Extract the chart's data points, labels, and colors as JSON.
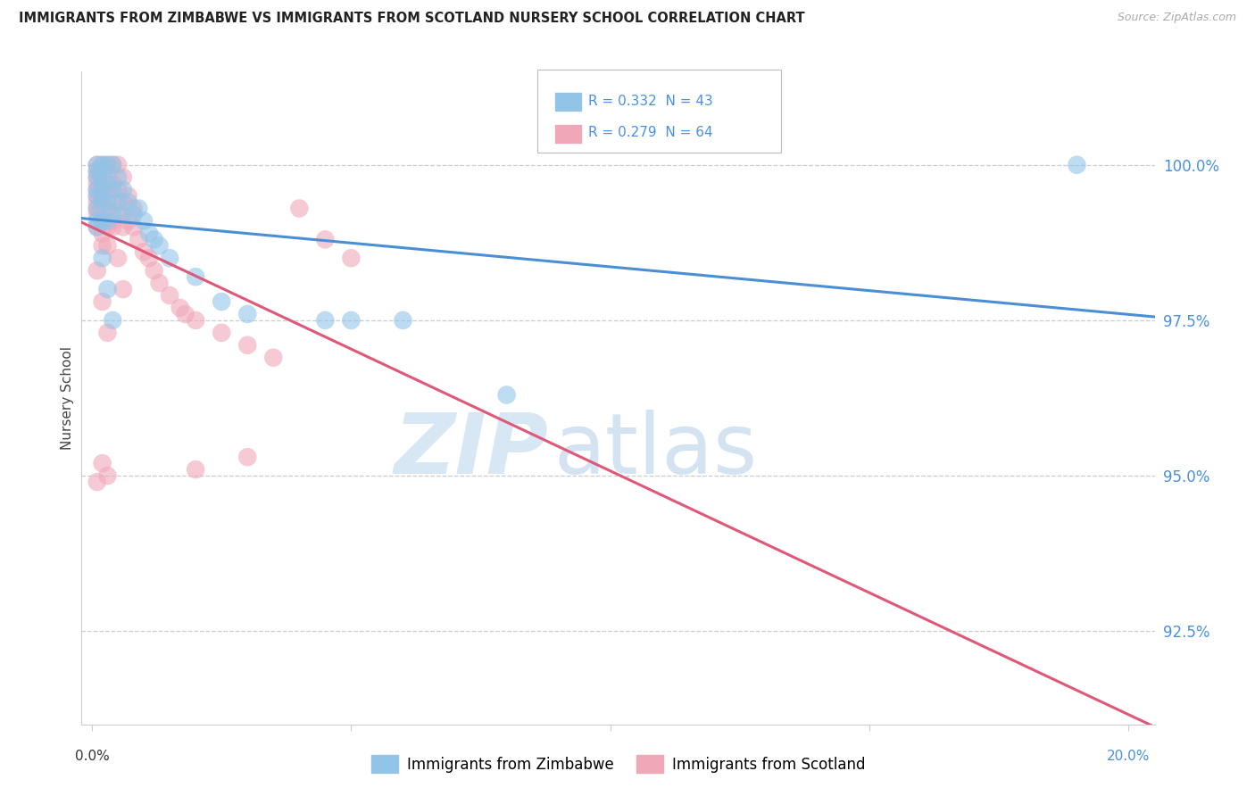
{
  "title": "IMMIGRANTS FROM ZIMBABWE VS IMMIGRANTS FROM SCOTLAND NURSERY SCHOOL CORRELATION CHART",
  "source": "Source: ZipAtlas.com",
  "ylabel": "Nursery School",
  "y_ticks": [
    92.5,
    95.0,
    97.5,
    100.0
  ],
  "y_tick_labels": [
    "92.5%",
    "95.0%",
    "97.5%",
    "100.0%"
  ],
  "ylim": [
    91.0,
    101.5
  ],
  "xlim": [
    -0.002,
    0.205
  ],
  "x_tick_positions": [
    0.0,
    0.05,
    0.1,
    0.15,
    0.2
  ],
  "zimbabwe_color": "#92c4e8",
  "scotland_color": "#f0a8b8",
  "zimbabwe_line_color": "#4a8fd4",
  "scotland_line_color": "#e05878",
  "legend1_label": "R = 0.332  N = 43",
  "legend2_label": "R = 0.279  N = 64",
  "bottom_legend1": "Immigrants from Zimbabwe",
  "bottom_legend2": "Immigrants from Scotland",
  "grid_color": "#cccccc",
  "bg_color": "#ffffff",
  "title_color": "#222222",
  "source_color": "#aaaaaa",
  "y_tick_color": "#4a90e2",
  "zimbabwe_x": [
    0.001,
    0.001,
    0.001,
    0.001,
    0.001,
    0.001,
    0.001,
    0.002,
    0.002,
    0.002,
    0.002,
    0.002,
    0.003,
    0.003,
    0.003,
    0.003,
    0.004,
    0.004,
    0.004,
    0.005,
    0.005,
    0.006,
    0.006,
    0.007,
    0.008,
    0.009,
    0.01,
    0.011,
    0.012,
    0.013,
    0.015,
    0.02,
    0.025,
    0.03,
    0.045,
    0.05,
    0.06,
    0.08,
    0.19,
    0.001,
    0.002,
    0.003,
    0.004
  ],
  "zimbabwe_y": [
    100.0,
    99.9,
    99.8,
    99.6,
    99.5,
    99.3,
    99.1,
    100.0,
    99.8,
    99.6,
    99.4,
    99.1,
    100.0,
    99.7,
    99.4,
    99.1,
    100.0,
    99.6,
    99.2,
    99.8,
    99.4,
    99.6,
    99.2,
    99.4,
    99.2,
    99.3,
    99.1,
    98.9,
    98.8,
    98.7,
    98.5,
    98.2,
    97.8,
    97.6,
    97.5,
    97.5,
    97.5,
    96.3,
    100.0,
    99.0,
    98.5,
    98.0,
    97.5
  ],
  "scotland_x": [
    0.001,
    0.001,
    0.001,
    0.001,
    0.001,
    0.001,
    0.001,
    0.001,
    0.001,
    0.001,
    0.002,
    0.002,
    0.002,
    0.002,
    0.002,
    0.002,
    0.002,
    0.002,
    0.003,
    0.003,
    0.003,
    0.003,
    0.003,
    0.003,
    0.004,
    0.004,
    0.004,
    0.004,
    0.005,
    0.005,
    0.005,
    0.006,
    0.006,
    0.006,
    0.007,
    0.007,
    0.008,
    0.008,
    0.009,
    0.01,
    0.011,
    0.012,
    0.013,
    0.015,
    0.017,
    0.018,
    0.02,
    0.025,
    0.03,
    0.035,
    0.04,
    0.045,
    0.05,
    0.001,
    0.002,
    0.003,
    0.004,
    0.005,
    0.006,
    0.02,
    0.03,
    0.001,
    0.002,
    0.003
  ],
  "scotland_y": [
    100.0,
    99.9,
    99.8,
    99.7,
    99.6,
    99.5,
    99.4,
    99.3,
    99.2,
    99.0,
    100.0,
    99.9,
    99.7,
    99.5,
    99.3,
    99.1,
    98.9,
    98.7,
    100.0,
    99.8,
    99.6,
    99.3,
    99.0,
    98.7,
    100.0,
    99.7,
    99.4,
    99.1,
    100.0,
    99.6,
    99.2,
    99.8,
    99.4,
    99.0,
    99.5,
    99.1,
    99.3,
    99.0,
    98.8,
    98.6,
    98.5,
    98.3,
    98.1,
    97.9,
    97.7,
    97.6,
    97.5,
    97.3,
    97.1,
    96.9,
    99.3,
    98.8,
    98.5,
    98.3,
    97.8,
    97.3,
    99.0,
    98.5,
    98.0,
    95.1,
    95.3,
    94.9,
    95.2,
    95.0
  ]
}
